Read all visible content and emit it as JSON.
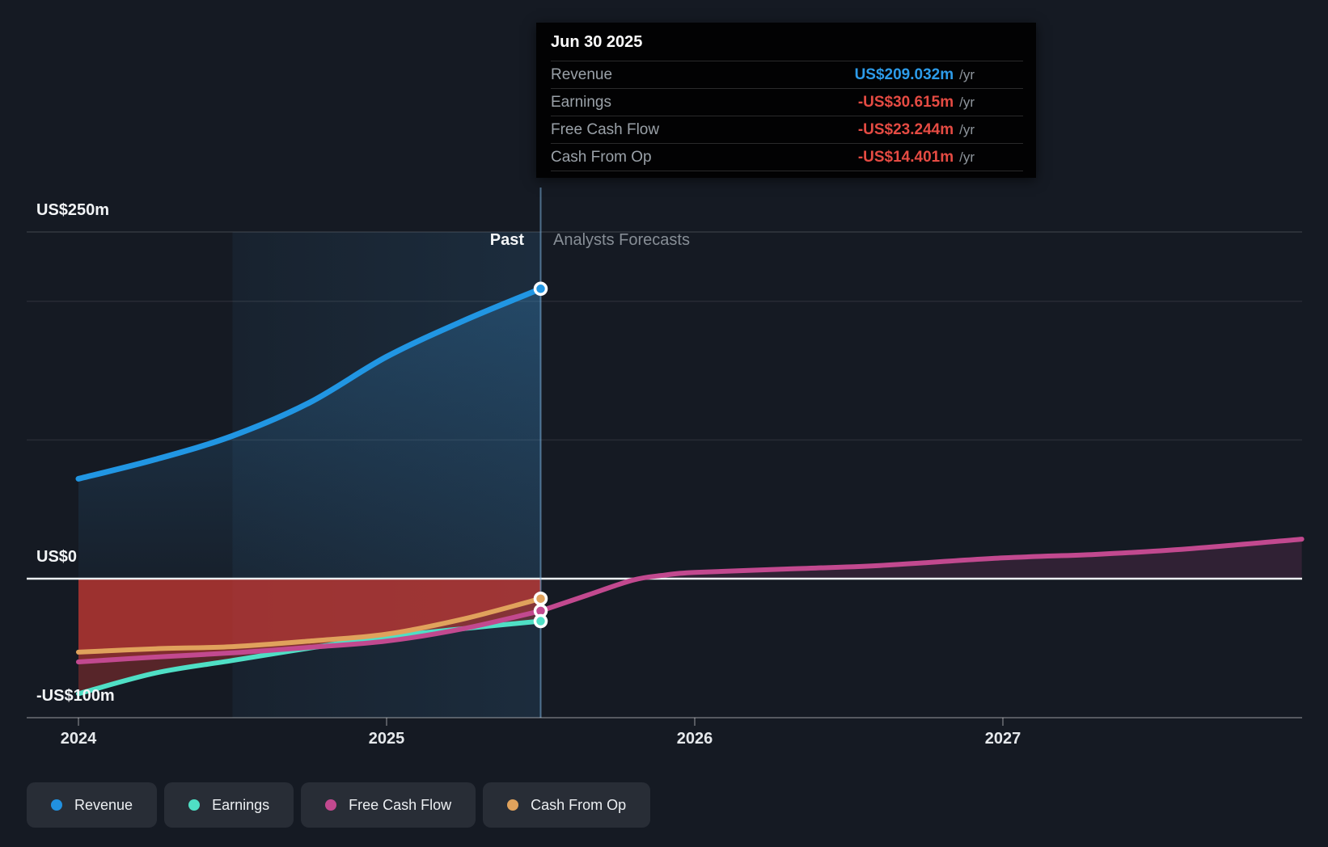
{
  "chart": {
    "past_label": "Past",
    "forecast_label": "Analysts Forecasts",
    "y_axis_labels": [
      {
        "text": "US$250m",
        "value_m": 250
      },
      {
        "text": "US$0",
        "value_m": 0
      },
      {
        "text": "-US$100m",
        "value_m": -100
      }
    ],
    "x_axis_labels": [
      {
        "text": "2024",
        "year": 2024
      },
      {
        "text": "2025",
        "year": 2025
      },
      {
        "text": "2026",
        "year": 2026
      },
      {
        "text": "2027",
        "year": 2027
      }
    ]
  },
  "tooltip": {
    "date": "Jun 30 2025",
    "rows": [
      {
        "label": "Revenue",
        "value": "US$209.032m",
        "unit": "/yr",
        "value_color": "#2D9CEA"
      },
      {
        "label": "Earnings",
        "value": "-US$30.615m",
        "unit": "/yr",
        "value_color": "#E54B43"
      },
      {
        "label": "Free Cash Flow",
        "value": "-US$23.244m",
        "unit": "/yr",
        "value_color": "#E54B43"
      },
      {
        "label": "Cash From Op",
        "value": "-US$14.401m",
        "unit": "/yr",
        "value_color": "#E54B43"
      }
    ]
  },
  "legend": [
    {
      "id": "revenue",
      "label": "Revenue",
      "color": "#2191E0"
    },
    {
      "id": "earnings",
      "label": "Earnings",
      "color": "#4FDFC5"
    },
    {
      "id": "free-cash-flow",
      "label": "Free Cash Flow",
      "color": "#C2498F"
    },
    {
      "id": "cash-from-op",
      "label": "Cash From Op",
      "color": "#E0A25C"
    }
  ],
  "chart_data": {
    "type": "line",
    "x_unit": "decimal_year",
    "value_unit": "US$m",
    "xlim": [
      2024,
      2028
    ],
    "ylim": [
      -100,
      250
    ],
    "gridlines_m": [
      250,
      200,
      100
    ],
    "zero_line_m": 0,
    "bottom_axis_m": -100,
    "divider_x": 2025.5,
    "divider_date": "Jun 30 2025",
    "emphasis_band_x": [
      2024.5,
      2025.5
    ],
    "legend_position": "bottom-left",
    "series": [
      {
        "name": "Revenue",
        "color": "#2196E3",
        "region": "past",
        "end_dot": true,
        "points": [
          [
            2024.0,
            72
          ],
          [
            2024.25,
            86
          ],
          [
            2024.5,
            103
          ],
          [
            2024.75,
            127
          ],
          [
            2025.0,
            160
          ],
          [
            2025.25,
            186
          ],
          [
            2025.5,
            209.032
          ]
        ]
      },
      {
        "name": "Earnings",
        "color": "#4FDFC5",
        "region": "past",
        "end_dot": true,
        "points": [
          [
            2024.0,
            -83
          ],
          [
            2024.25,
            -68
          ],
          [
            2024.5,
            -59
          ],
          [
            2024.75,
            -50
          ],
          [
            2025.0,
            -42
          ],
          [
            2025.25,
            -36
          ],
          [
            2025.5,
            -30.615
          ]
        ]
      },
      {
        "name": "Free Cash Flow",
        "color": "#C2498F",
        "region": "past",
        "end_dot": true,
        "points": [
          [
            2024.0,
            -60
          ],
          [
            2024.25,
            -56.5
          ],
          [
            2024.5,
            -53.5
          ],
          [
            2024.75,
            -49.5
          ],
          [
            2025.0,
            -45
          ],
          [
            2025.25,
            -36
          ],
          [
            2025.5,
            -23.244
          ]
        ]
      },
      {
        "name": "Free Cash Flow Forecast",
        "color": "#C2498F",
        "region": "forecast",
        "end_dot": false,
        "points": [
          [
            2025.5,
            -23.244
          ],
          [
            2025.65,
            -12
          ],
          [
            2025.8,
            -1
          ],
          [
            2025.9,
            2.5
          ],
          [
            2026.0,
            4.5
          ],
          [
            2026.3,
            7
          ],
          [
            2026.6,
            9.5
          ],
          [
            2027.0,
            15
          ],
          [
            2027.3,
            17.5
          ],
          [
            2027.6,
            21.5
          ],
          [
            2027.97,
            28.5
          ]
        ]
      },
      {
        "name": "Cash From Op",
        "color": "#E0A25C",
        "region": "past",
        "end_dot": true,
        "points": [
          [
            2024.0,
            -53
          ],
          [
            2024.25,
            -50.5
          ],
          [
            2024.5,
            -49
          ],
          [
            2024.75,
            -45
          ],
          [
            2025.0,
            -40
          ],
          [
            2025.25,
            -29
          ],
          [
            2025.5,
            -14.401
          ]
        ]
      }
    ]
  }
}
